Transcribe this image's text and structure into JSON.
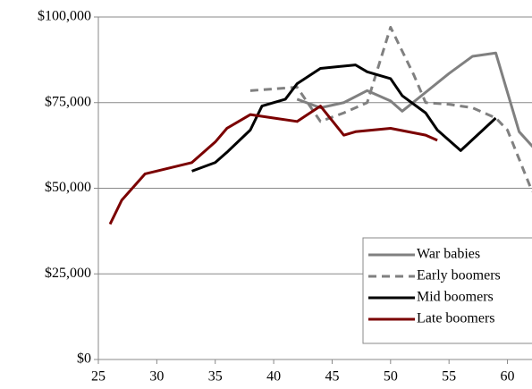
{
  "chart_data": {
    "type": "line",
    "x_ticks_are_numbers": true,
    "xlim": [
      25,
      62.1
    ],
    "xticks": [
      25,
      30,
      35,
      40,
      45,
      50,
      55,
      60
    ],
    "ylim": [
      0,
      100000
    ],
    "yticks": [
      {
        "value": 0,
        "label": "$0"
      },
      {
        "value": 25000,
        "label": "$25,000"
      },
      {
        "value": 50000,
        "label": "$50,000"
      },
      {
        "value": 75000,
        "label": "$75,000"
      },
      {
        "value": 100000,
        "label": "$100,000"
      }
    ],
    "grid": true,
    "legend": "lower right",
    "series": [
      {
        "name": "War babies",
        "color": "#808080",
        "line_style": "solid",
        "x": [
          42,
          44,
          46,
          48,
          50,
          51,
          53,
          55,
          57,
          59,
          61,
          63
        ],
        "values": [
          76000,
          73500,
          75000,
          78500,
          75500,
          72500,
          78000,
          83500,
          88500,
          89500,
          66500,
          59000
        ]
      },
      {
        "name": "Early boomers",
        "color": "#808080",
        "line_style": "dashed",
        "x": [
          38,
          40,
          42,
          44,
          46,
          48,
          50,
          52,
          53,
          55,
          57,
          59,
          60,
          62,
          63
        ],
        "values": [
          78500,
          79000,
          79500,
          69500,
          72000,
          75000,
          97000,
          83000,
          75000,
          74500,
          73500,
          70500,
          67000,
          50000,
          45000
        ]
      },
      {
        "name": "Mid boomers",
        "color": "#000000",
        "line_style": "solid",
        "x": [
          33,
          35,
          36,
          38,
          39,
          41,
          42,
          44,
          47,
          48,
          50,
          51,
          53,
          54,
          56,
          59
        ],
        "values": [
          55000,
          57500,
          60500,
          67000,
          74000,
          76000,
          80500,
          85000,
          86000,
          84000,
          82000,
          77000,
          72000,
          67000,
          61000,
          70500
        ]
      },
      {
        "name": "Late boomers",
        "color": "#7b0000",
        "line_style": "solid",
        "x": [
          26,
          27,
          29,
          33,
          35,
          36,
          38,
          40,
          42,
          44,
          46,
          47,
          50,
          53,
          54
        ],
        "values": [
          39500,
          46500,
          54200,
          57500,
          63500,
          67500,
          71500,
          70500,
          69500,
          74000,
          65500,
          66500,
          67500,
          65500,
          64000
        ]
      }
    ]
  }
}
